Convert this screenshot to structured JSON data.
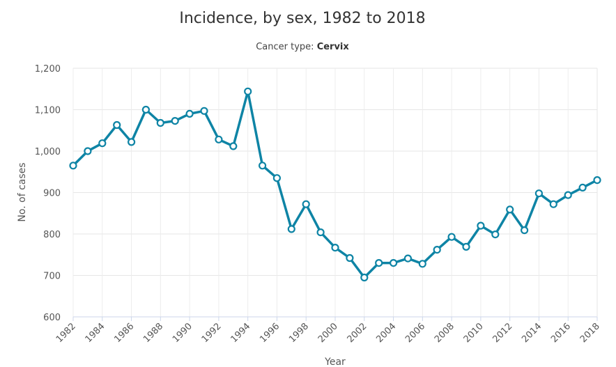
{
  "chart_data": {
    "type": "line",
    "title": "Incidence, by sex, 1982 to 2018",
    "subtitle_label": "Cancer type: ",
    "subtitle_value": "Cervix",
    "xlabel": "Year",
    "ylabel": "No. of cases",
    "ylim": [
      600,
      1200
    ],
    "yticks": [
      600,
      700,
      800,
      900,
      1000,
      1100,
      1200
    ],
    "ytick_labels": [
      "600",
      "700",
      "800",
      "900",
      "1,000",
      "1,100",
      "1,200"
    ],
    "xlim": [
      1982,
      2018
    ],
    "xticks": [
      1982,
      1984,
      1986,
      1988,
      1990,
      1992,
      1994,
      1996,
      1998,
      2000,
      2002,
      2004,
      2006,
      2008,
      2010,
      2012,
      2014,
      2016,
      2018
    ],
    "grid": true,
    "legend": "none",
    "line_color": "#0e84a5",
    "series": [
      {
        "x": [
          1982,
          1983,
          1984,
          1985,
          1986,
          1987,
          1988,
          1989,
          1990,
          1991,
          1992,
          1993,
          1994,
          1995,
          1996,
          1997,
          1998,
          1999,
          2000,
          2001,
          2002,
          2003,
          2004,
          2005,
          2006,
          2007,
          2008,
          2009,
          2010,
          2011,
          2012,
          2013,
          2014,
          2015,
          2016,
          2017,
          2018
        ],
        "values": [
          965,
          1000,
          1019,
          1063,
          1022,
          1100,
          1068,
          1073,
          1090,
          1097,
          1028,
          1012,
          1144,
          965,
          935,
          812,
          872,
          804,
          767,
          742,
          695,
          730,
          730,
          741,
          728,
          762,
          793,
          769,
          820,
          799,
          859,
          809,
          898,
          872,
          894,
          912,
          930
        ]
      }
    ]
  }
}
